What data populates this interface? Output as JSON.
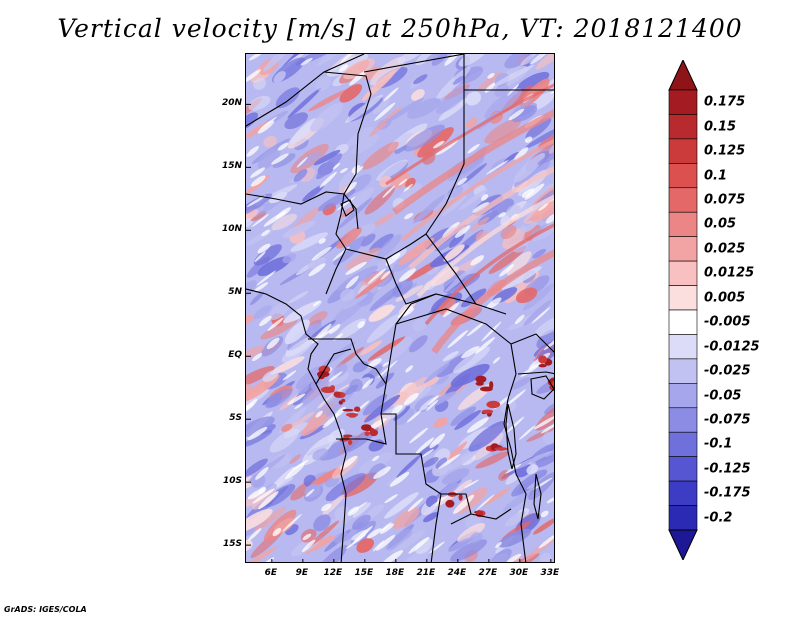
{
  "title": "Vertical velocity [m/s] at 250hPa, VT: 2018121400",
  "credit": "GrADS: IGES/COLA",
  "map": {
    "lon_range": [
      3.5,
      33.5
    ],
    "lat_range": [
      -16.5,
      24
    ],
    "lat_ticks": [
      {
        "lat": 20,
        "label": "20N"
      },
      {
        "lat": 15,
        "label": "15N"
      },
      {
        "lat": 10,
        "label": "10N"
      },
      {
        "lat": 5,
        "label": "5N"
      },
      {
        "lat": 0,
        "label": "EQ"
      },
      {
        "lat": -5,
        "label": "5S"
      },
      {
        "lat": -10,
        "label": "10S"
      },
      {
        "lat": -15,
        "label": "15S"
      }
    ],
    "lon_ticks": [
      {
        "lon": 6,
        "label": "6E"
      },
      {
        "lon": 9,
        "label": "9E"
      },
      {
        "lon": 12,
        "label": "12E"
      },
      {
        "lon": 15,
        "label": "15E"
      },
      {
        "lon": 18,
        "label": "18E"
      },
      {
        "lon": 21,
        "label": "21E"
      },
      {
        "lon": 24,
        "label": "24E"
      },
      {
        "lon": 27,
        "label": "27E"
      },
      {
        "lon": 30,
        "label": "30E"
      },
      {
        "lon": 33,
        "label": "33E"
      }
    ]
  },
  "colorbar": {
    "levels": [
      {
        "label": "0.175",
        "color": "#a41c22"
      },
      {
        "label": "0.15",
        "color": "#b82a2e"
      },
      {
        "label": "0.125",
        "color": "#cc3b3b"
      },
      {
        "label": "0.1",
        "color": "#dc5050"
      },
      {
        "label": "0.075",
        "color": "#e46868"
      },
      {
        "label": "0.05",
        "color": "#ec8585"
      },
      {
        "label": "0.025",
        "color": "#f2a3a3"
      },
      {
        "label": "0.0125",
        "color": "#f8c0c0"
      },
      {
        "label": "0.005",
        "color": "#fbdede"
      },
      {
        "label": "-0.005",
        "color": "#ffffff"
      },
      {
        "label": "-0.0125",
        "color": "#dcdcf8"
      },
      {
        "label": "-0.025",
        "color": "#c2c2f2"
      },
      {
        "label": "-0.05",
        "color": "#a6a6ec"
      },
      {
        "label": "-0.075",
        "color": "#8c8ce4"
      },
      {
        "label": "-0.1",
        "color": "#7070dc"
      },
      {
        "label": "-0.125",
        "color": "#5656d2"
      },
      {
        "label": "-0.175",
        "color": "#3c3cc4"
      },
      {
        "label": "-0.2",
        "color": "#2a2ab4"
      }
    ],
    "extend_top_color": "#8e1418",
    "extend_bottom_color": "#1e1896"
  }
}
